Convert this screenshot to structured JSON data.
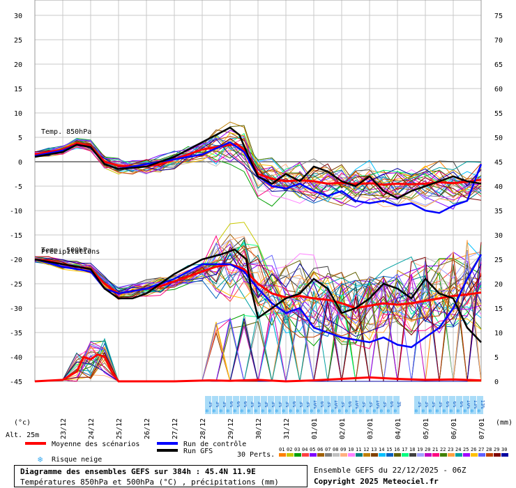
{
  "chart_data": {
    "type": "line",
    "left_axis": {
      "unit": "(°c)",
      "ticks": [
        30,
        25,
        20,
        15,
        10,
        5,
        0,
        -5,
        -10,
        -15,
        -20,
        -25,
        -30,
        -35,
        -40,
        -45
      ],
      "range": [
        -45,
        30
      ]
    },
    "right_axis": {
      "unit": "(mm)",
      "ticks": [
        75,
        70,
        65,
        60,
        55,
        50,
        45,
        40,
        35,
        30,
        25,
        20,
        15,
        10,
        5,
        0
      ],
      "range": [
        0,
        75
      ]
    },
    "x_labels": [
      "23/12",
      "24/12",
      "25/12",
      "26/12",
      "27/12",
      "28/12",
      "29/12",
      "30/12",
      "31/12",
      "01/01",
      "02/01",
      "03/01",
      "04/01",
      "05/01",
      "06/01",
      "07/01"
    ],
    "x_range_hours": [
      0,
      384
    ],
    "panel_labels": {
      "t850": "Temp. 850hPa",
      "t500": "Temp. 500hPa",
      "precip": "Précipitations"
    },
    "series": [
      {
        "name": "Moyenne des scénarios",
        "color": "#ff0000",
        "t850": [
          [
            0,
            1.5
          ],
          [
            12,
            2
          ],
          [
            24,
            2.5
          ],
          [
            36,
            3.8
          ],
          [
            48,
            3.2
          ],
          [
            60,
            0
          ],
          [
            72,
            -0.8
          ],
          [
            84,
            -1
          ],
          [
            96,
            -1
          ],
          [
            108,
            -0.5
          ],
          [
            120,
            0.5
          ],
          [
            132,
            1.5
          ],
          [
            144,
            2.5
          ],
          [
            156,
            3
          ],
          [
            168,
            3.5
          ],
          [
            174,
            3.6
          ],
          [
            180,
            2.5
          ],
          [
            186,
            0
          ],
          [
            192,
            -2.5
          ],
          [
            204,
            -3.5
          ],
          [
            216,
            -4
          ],
          [
            228,
            -3.8
          ],
          [
            240,
            -4
          ],
          [
            252,
            -4.5
          ],
          [
            264,
            -4.3
          ],
          [
            276,
            -4.6
          ],
          [
            288,
            -4.4
          ],
          [
            300,
            -4.7
          ],
          [
            312,
            -4.5
          ],
          [
            324,
            -4.6
          ],
          [
            336,
            -4.5
          ],
          [
            348,
            -4.2
          ],
          [
            360,
            -4.4
          ],
          [
            372,
            -4.1
          ],
          [
            384,
            -3.7
          ]
        ],
        "t500": [
          [
            0,
            -20
          ],
          [
            12,
            -20.3
          ],
          [
            24,
            -21
          ],
          [
            36,
            -21.5
          ],
          [
            48,
            -22
          ],
          [
            60,
            -25
          ],
          [
            72,
            -27
          ],
          [
            84,
            -26.5
          ],
          [
            96,
            -26
          ],
          [
            108,
            -25.5
          ],
          [
            120,
            -24.5
          ],
          [
            132,
            -23.5
          ],
          [
            144,
            -22.5
          ],
          [
            156,
            -21.5
          ],
          [
            168,
            -21
          ],
          [
            180,
            -22
          ],
          [
            192,
            -25
          ],
          [
            204,
            -27
          ],
          [
            216,
            -27.8
          ],
          [
            228,
            -27.5
          ],
          [
            240,
            -28
          ],
          [
            252,
            -28.3
          ],
          [
            264,
            -29
          ],
          [
            276,
            -30
          ],
          [
            288,
            -29.5
          ],
          [
            300,
            -29
          ],
          [
            312,
            -29.3
          ],
          [
            324,
            -29
          ],
          [
            336,
            -28.5
          ],
          [
            348,
            -28
          ],
          [
            360,
            -27.5
          ],
          [
            372,
            -27.2
          ],
          [
            384,
            -26.8
          ]
        ],
        "precip": [
          [
            0,
            0
          ],
          [
            24,
            0.3
          ],
          [
            36,
            2
          ],
          [
            42,
            5
          ],
          [
            48,
            4.5
          ],
          [
            54,
            5.5
          ],
          [
            60,
            5
          ],
          [
            66,
            2
          ],
          [
            72,
            0
          ],
          [
            120,
            0
          ],
          [
            150,
            0.2
          ],
          [
            168,
            0.1
          ],
          [
            192,
            0.3
          ],
          [
            216,
            0
          ],
          [
            240,
            0.2
          ],
          [
            264,
            0.5
          ],
          [
            288,
            0.8
          ],
          [
            312,
            0.5
          ],
          [
            336,
            0.3
          ],
          [
            360,
            0.4
          ],
          [
            384,
            0.2
          ]
        ]
      },
      {
        "name": "Run de contrôle",
        "color": "#0000ff",
        "t850": [
          [
            0,
            1.2
          ],
          [
            24,
            2.3
          ],
          [
            36,
            3.5
          ],
          [
            48,
            3
          ],
          [
            60,
            -0.5
          ],
          [
            72,
            -1.5
          ],
          [
            84,
            -1
          ],
          [
            96,
            -0.5
          ],
          [
            120,
            0.5
          ],
          [
            144,
            1.5
          ],
          [
            168,
            4
          ],
          [
            180,
            2
          ],
          [
            192,
            -3
          ],
          [
            204,
            -5
          ],
          [
            216,
            -5.5
          ],
          [
            228,
            -4.5
          ],
          [
            240,
            -6
          ],
          [
            252,
            -7
          ],
          [
            264,
            -6
          ],
          [
            276,
            -8
          ],
          [
            288,
            -8.5
          ],
          [
            300,
            -8
          ],
          [
            312,
            -9
          ],
          [
            324,
            -8.5
          ],
          [
            336,
            -10
          ],
          [
            348,
            -10.5
          ],
          [
            360,
            -9
          ],
          [
            372,
            -8
          ],
          [
            384,
            -0.5
          ]
        ],
        "t500": [
          [
            0,
            -20
          ],
          [
            24,
            -21.5
          ],
          [
            48,
            -22.5
          ],
          [
            60,
            -26
          ],
          [
            72,
            -27
          ],
          [
            96,
            -26
          ],
          [
            120,
            -24
          ],
          [
            144,
            -21
          ],
          [
            168,
            -21
          ],
          [
            180,
            -22.5
          ],
          [
            192,
            -26
          ],
          [
            204,
            -29
          ],
          [
            216,
            -31
          ],
          [
            228,
            -30
          ],
          [
            240,
            -34
          ],
          [
            252,
            -35
          ],
          [
            264,
            -36
          ],
          [
            276,
            -36.5
          ],
          [
            288,
            -37
          ],
          [
            300,
            -36
          ],
          [
            312,
            -37.5
          ],
          [
            324,
            -38
          ],
          [
            336,
            -36
          ],
          [
            348,
            -34
          ],
          [
            360,
            -30
          ],
          [
            372,
            -24
          ],
          [
            384,
            -19
          ]
        ]
      },
      {
        "name": "Run GFS",
        "color": "#000000",
        "t850": [
          [
            0,
            1
          ],
          [
            24,
            2
          ],
          [
            36,
            3.5
          ],
          [
            48,
            3
          ],
          [
            60,
            -0.5
          ],
          [
            72,
            -1.5
          ],
          [
            96,
            -1
          ],
          [
            120,
            1
          ],
          [
            144,
            4
          ],
          [
            156,
            5.5
          ],
          [
            168,
            7
          ],
          [
            176,
            5.5
          ],
          [
            184,
            1
          ],
          [
            192,
            -3
          ],
          [
            204,
            -4.5
          ],
          [
            216,
            -2.5
          ],
          [
            228,
            -4
          ],
          [
            240,
            -1
          ],
          [
            252,
            -2
          ],
          [
            264,
            -4
          ],
          [
            276,
            -5
          ],
          [
            288,
            -3
          ],
          [
            300,
            -6
          ],
          [
            312,
            -7.5
          ],
          [
            324,
            -6
          ],
          [
            336,
            -5
          ],
          [
            348,
            -4
          ],
          [
            360,
            -3
          ],
          [
            372,
            -4
          ],
          [
            384,
            -4.5
          ]
        ],
        "t500": [
          [
            0,
            -20
          ],
          [
            24,
            -21
          ],
          [
            48,
            -22
          ],
          [
            60,
            -26
          ],
          [
            72,
            -28
          ],
          [
            84,
            -28
          ],
          [
            96,
            -27
          ],
          [
            120,
            -23
          ],
          [
            144,
            -20
          ],
          [
            160,
            -19
          ],
          [
            172,
            -18
          ],
          [
            182,
            -20
          ],
          [
            186,
            -26
          ],
          [
            192,
            -32
          ],
          [
            204,
            -30
          ],
          [
            216,
            -28
          ],
          [
            228,
            -27
          ],
          [
            240,
            -24
          ],
          [
            252,
            -26
          ],
          [
            264,
            -31
          ],
          [
            276,
            -30
          ],
          [
            288,
            -28
          ],
          [
            300,
            -25
          ],
          [
            312,
            -26
          ],
          [
            324,
            -28
          ],
          [
            336,
            -24
          ],
          [
            348,
            -27
          ],
          [
            360,
            -28
          ],
          [
            372,
            -34
          ],
          [
            384,
            -37
          ]
        ]
      }
    ],
    "snow_risk_columns": [
      [
        "3%",
        "3%",
        "3%",
        "6%",
        "6%",
        "6%",
        "3%",
        "3%",
        "3%"
      ],
      [
        "3%",
        "3%",
        "3%",
        "3%",
        "6%",
        "3%",
        "3%",
        "10%",
        "6%",
        "3%",
        "10%",
        "3%",
        "6%",
        "10%",
        "3%",
        "3%",
        "10%",
        "3%",
        "6%",
        "3%"
      ],
      [
        "3%",
        "3%",
        "3%",
        "3%",
        "6%",
        "6%",
        "6%",
        "10%",
        "13%",
        "13%"
      ]
    ],
    "member_legend": [
      "01",
      "02",
      "03",
      "04",
      "05",
      "06",
      "07",
      "08",
      "09",
      "10",
      "11",
      "12",
      "13",
      "14",
      "15",
      "16",
      "17",
      "18",
      "19",
      "20",
      "21",
      "22",
      "23",
      "24",
      "25",
      "26",
      "27",
      "28",
      "29",
      "30"
    ],
    "member_colors": [
      "#ff8000",
      "#c8c800",
      "#00a000",
      "#ff4040",
      "#8000ff",
      "#a06000",
      "#808080",
      "#c0c0c0",
      "#ffb080",
      "#ff80ff",
      "#008080",
      "#c08000",
      "#804000",
      "#00c0ff",
      "#0060c0",
      "#606000",
      "#00ff80",
      "#404040",
      "#a0a0ff",
      "#c000c0",
      "#ff0080",
      "#408000",
      "#ffa040",
      "#00a0a0",
      "#a000ff",
      "#ffc000",
      "#6060ff",
      "#c04000",
      "#800000",
      "#0000a0"
    ]
  },
  "legend": {
    "mean": "Moyenne des scénarios",
    "control": "Run de contrôle",
    "gfs": "Run GFS",
    "snow": "Risque neige",
    "perts": "30 Perts."
  },
  "footer": {
    "altitude": "Alt. 25m",
    "title": "Diagramme des ensembles GEFS sur 384h : 45.4N 11.9E",
    "subtitle": "Températures 850hPa et 500hPa (°C) , précipitations (mm)",
    "run": "Ensemble GEFS du 22/12/2025 - 06Z",
    "copyright": "Copyright 2025 Meteociel.fr"
  }
}
